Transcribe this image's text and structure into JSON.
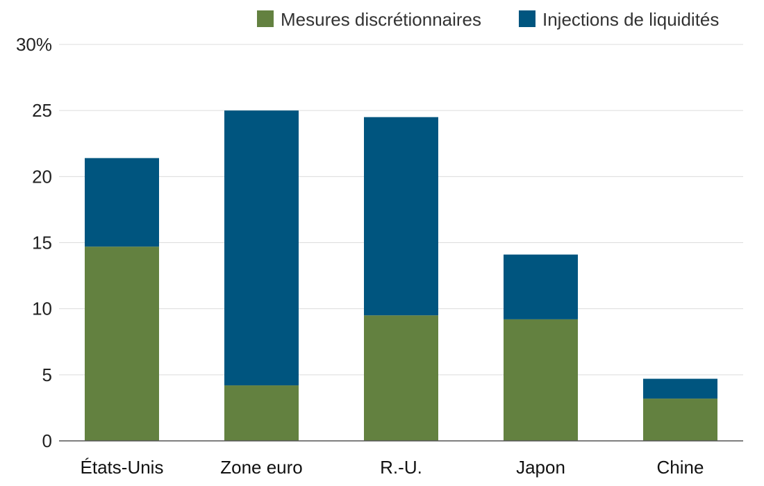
{
  "chart_data": {
    "type": "bar",
    "stacked": true,
    "categories": [
      "États-Unis",
      "Zone euro",
      "R.-U.",
      "Japon",
      "Chine"
    ],
    "series": [
      {
        "name": "Mesures discrétionnaires",
        "color": "#638140",
        "values": [
          14.7,
          4.2,
          9.5,
          9.2,
          3.2
        ]
      },
      {
        "name": "Injections de liquidités",
        "color": "#00557f",
        "values": [
          6.7,
          20.8,
          15.0,
          4.9,
          1.5
        ]
      }
    ],
    "ylim": [
      0,
      30
    ],
    "yticks": [
      "0",
      "5",
      "10",
      "15",
      "20",
      "25",
      "30%"
    ],
    "ytick_values": [
      0,
      5,
      10,
      15,
      20,
      25,
      30
    ],
    "grid": true,
    "legend": "top-right",
    "title": "",
    "xlabel": "",
    "ylabel": ""
  }
}
